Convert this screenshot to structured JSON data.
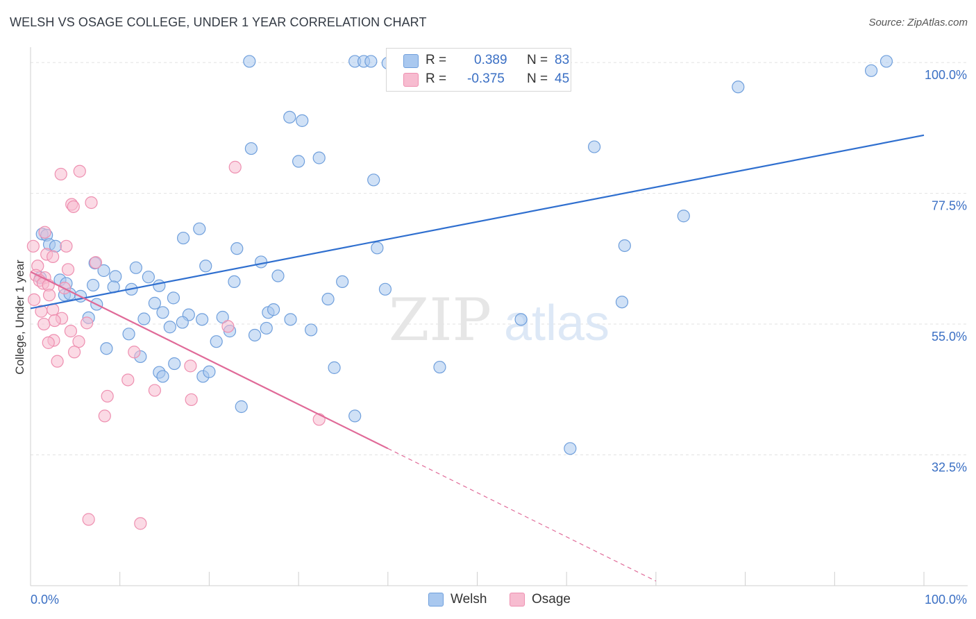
{
  "title": "WELSH VS OSAGE COLLEGE, UNDER 1 YEAR CORRELATION CHART",
  "source": "Source: ZipAtlas.com",
  "watermark": {
    "zip": "ZIP",
    "atlas": "atlas"
  },
  "legend": {
    "r_label": "R =",
    "n_label": "N =",
    "welsh": {
      "r": "0.389",
      "n": "83"
    },
    "osage": {
      "r": "-0.375",
      "n": "45"
    }
  },
  "colors": {
    "welsh_fill": "#a9c8ef",
    "welsh_stroke": "#6f9fdc",
    "welsh_line": "#2f6fcf",
    "osage_fill": "#f7bcd0",
    "osage_stroke": "#ee8fb0",
    "osage_line": "#e06a98",
    "axis_label": "#3a6fc4"
  },
  "chart_data": {
    "type": "scatter",
    "title": "WELSH VS OSAGE COLLEGE, UNDER 1 YEAR CORRELATION CHART",
    "xlabel": "",
    "ylabel": "College, Under 1 year",
    "xlim": [
      0,
      100
    ],
    "ylim": [
      10,
      102.4
    ],
    "x_tick_labels": [
      "0.0%",
      "100.0%"
    ],
    "y_ticks": [
      32.5,
      55.0,
      77.5,
      100.0
    ],
    "y_tick_labels": [
      "32.5%",
      "55.0%",
      "77.5%",
      "100.0%"
    ],
    "grid": true,
    "series": [
      {
        "name": "Welsh",
        "trend": {
          "x": [
            0,
            100
          ],
          "y": [
            57.7,
            87.5
          ],
          "style": "solid"
        },
        "points": [
          [
            24.5,
            100.2
          ],
          [
            36.3,
            100.2
          ],
          [
            37.3,
            100.2
          ],
          [
            38.1,
            100.2
          ],
          [
            40.5,
            100.2
          ],
          [
            41.1,
            100.2
          ],
          [
            95.8,
            100.2
          ],
          [
            94.1,
            98.6
          ],
          [
            79.2,
            95.8
          ],
          [
            29.0,
            90.6
          ],
          [
            30.4,
            90.0
          ],
          [
            63.1,
            85.5
          ],
          [
            24.7,
            85.2
          ],
          [
            30.0,
            83.0
          ],
          [
            32.3,
            83.6
          ],
          [
            38.4,
            79.8
          ],
          [
            73.1,
            73.6
          ],
          [
            18.9,
            71.4
          ],
          [
            17.1,
            69.8
          ],
          [
            1.3,
            70.5
          ],
          [
            1.8,
            70.3
          ],
          [
            2.1,
            68.7
          ],
          [
            2.8,
            68.4
          ],
          [
            23.1,
            68.0
          ],
          [
            38.8,
            68.1
          ],
          [
            66.5,
            68.5
          ],
          [
            7.2,
            65.5
          ],
          [
            25.8,
            65.7
          ],
          [
            19.6,
            65.0
          ],
          [
            8.2,
            64.2
          ],
          [
            11.8,
            64.7
          ],
          [
            13.2,
            63.1
          ],
          [
            9.5,
            63.2
          ],
          [
            1.1,
            63.0
          ],
          [
            3.3,
            62.6
          ],
          [
            4.0,
            62.0
          ],
          [
            22.8,
            62.3
          ],
          [
            34.9,
            62.3
          ],
          [
            27.7,
            63.3
          ],
          [
            7.0,
            61.7
          ],
          [
            9.3,
            61.4
          ],
          [
            11.3,
            61.0
          ],
          [
            14.4,
            61.6
          ],
          [
            39.7,
            61.0
          ],
          [
            3.8,
            60.0
          ],
          [
            4.4,
            60.2
          ],
          [
            5.6,
            59.8
          ],
          [
            16.0,
            59.5
          ],
          [
            33.3,
            59.3
          ],
          [
            66.2,
            58.8
          ],
          [
            13.9,
            58.6
          ],
          [
            7.4,
            58.4
          ],
          [
            14.8,
            57.0
          ],
          [
            26.6,
            57.0
          ],
          [
            27.2,
            57.5
          ],
          [
            6.5,
            56.1
          ],
          [
            17.7,
            56.6
          ],
          [
            21.5,
            56.2
          ],
          [
            12.7,
            55.9
          ],
          [
            19.2,
            55.8
          ],
          [
            29.1,
            55.8
          ],
          [
            54.9,
            55.8
          ],
          [
            15.6,
            54.5
          ],
          [
            17.0,
            55.3
          ],
          [
            26.4,
            54.3
          ],
          [
            11.0,
            53.3
          ],
          [
            22.3,
            53.8
          ],
          [
            25.1,
            53.1
          ],
          [
            31.4,
            54.0
          ],
          [
            20.8,
            52.0
          ],
          [
            8.5,
            50.8
          ],
          [
            12.3,
            49.4
          ],
          [
            16.1,
            48.2
          ],
          [
            34.0,
            47.5
          ],
          [
            45.8,
            47.6
          ],
          [
            14.4,
            46.7
          ],
          [
            14.8,
            46.0
          ],
          [
            19.3,
            46.0
          ],
          [
            20.0,
            46.8
          ],
          [
            23.6,
            40.8
          ],
          [
            36.3,
            39.2
          ],
          [
            60.4,
            33.6
          ],
          [
            40.0,
            99.9
          ]
        ]
      },
      {
        "name": "Osage",
        "trend": {
          "x": [
            0,
            40
          ],
          "y": [
            64.0,
            33.6
          ],
          "style": "solid",
          "extension": {
            "x": [
              40,
              70
            ],
            "y": [
              33.6,
              10.8
            ],
            "style": "dashed"
          }
        },
        "points": [
          [
            22.9,
            82.0
          ],
          [
            3.4,
            80.8
          ],
          [
            5.5,
            81.3
          ],
          [
            4.6,
            75.6
          ],
          [
            6.8,
            75.9
          ],
          [
            4.8,
            75.2
          ],
          [
            1.6,
            70.8
          ],
          [
            0.3,
            68.4
          ],
          [
            4.0,
            68.4
          ],
          [
            1.8,
            67.0
          ],
          [
            2.5,
            66.6
          ],
          [
            7.3,
            65.6
          ],
          [
            0.8,
            65.0
          ],
          [
            4.2,
            64.4
          ],
          [
            0.6,
            63.4
          ],
          [
            1.6,
            63.0
          ],
          [
            1.0,
            62.5
          ],
          [
            1.4,
            62.0
          ],
          [
            2.0,
            61.7
          ],
          [
            3.8,
            61.2
          ],
          [
            2.1,
            60.0
          ],
          [
            0.4,
            59.2
          ],
          [
            2.5,
            57.5
          ],
          [
            1.2,
            57.2
          ],
          [
            3.5,
            56.0
          ],
          [
            2.7,
            55.6
          ],
          [
            6.3,
            55.2
          ],
          [
            1.5,
            55.0
          ],
          [
            2.6,
            52.2
          ],
          [
            4.5,
            53.8
          ],
          [
            5.4,
            52.0
          ],
          [
            2.0,
            51.8
          ],
          [
            22.1,
            54.6
          ],
          [
            4.9,
            50.2
          ],
          [
            3.0,
            48.6
          ],
          [
            11.6,
            50.2
          ],
          [
            17.9,
            47.8
          ],
          [
            10.9,
            45.4
          ],
          [
            13.9,
            43.6
          ],
          [
            8.6,
            42.6
          ],
          [
            18.0,
            42.0
          ],
          [
            8.3,
            39.2
          ],
          [
            32.3,
            38.6
          ],
          [
            6.5,
            21.4
          ],
          [
            12.3,
            20.7
          ]
        ]
      }
    ]
  }
}
